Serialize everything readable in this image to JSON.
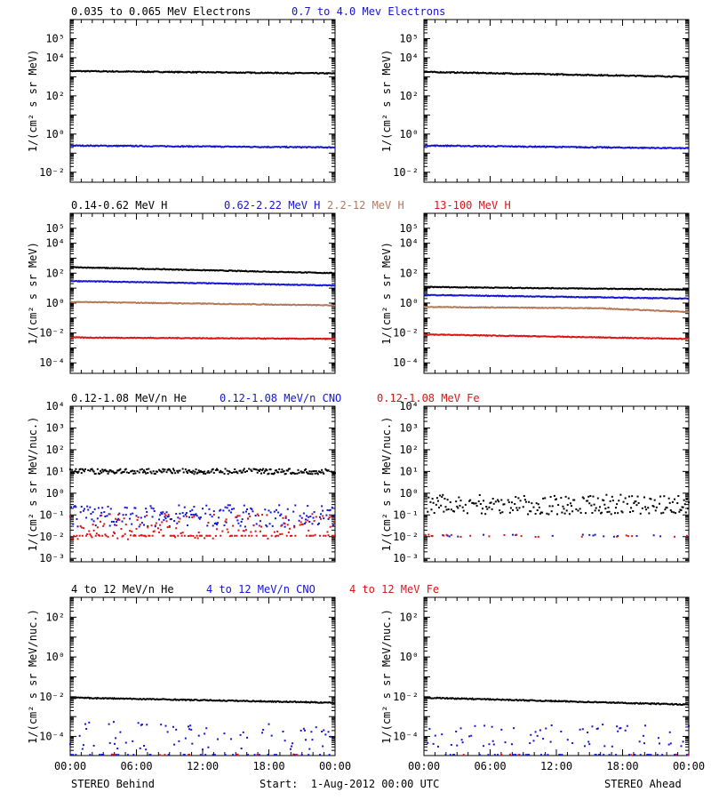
{
  "colors": {
    "black": "#000000",
    "blue": "#1414d2",
    "brown": "#b4785a",
    "red": "#dc1414"
  },
  "footer": {
    "left": "STEREO Behind",
    "center": "Start:  1-Aug-2012 00:00 UTC",
    "right": "STEREO Ahead"
  },
  "chart_data": [
    {
      "type": "line",
      "panel": "electrons",
      "spacecraft": "STEREO Behind",
      "log_scale": true,
      "ylim": [
        0.003,
        1000000
      ],
      "ylabel": "1/(cm² s sr MeV)",
      "yticks": [
        {
          "v": 100000,
          "label": "10^5"
        },
        {
          "v": 10000,
          "label": "10^4"
        },
        {
          "v": 100,
          "label": "10^2"
        },
        {
          "v": 1,
          "label": "10^0"
        },
        {
          "v": 0.01,
          "label": "10^-2"
        }
      ],
      "xlim": [
        "2012-08-01 00:00",
        "2012-08-02 00:00"
      ],
      "xtick_labels": [],
      "titles": [
        {
          "text": "0.035 to 0.065 MeV Electrons",
          "color": "black"
        },
        {
          "text": "0.7 to 4.0 Mev Electrons",
          "color": "blue"
        }
      ],
      "series": [
        {
          "name": "0.035 to 0.065 MeV Electrons",
          "color": "black",
          "style": "line",
          "times": [
            "00:00",
            "24:00"
          ],
          "values": [
            2000,
            1500
          ]
        },
        {
          "name": "0.7 to 4.0 Mev Electrons",
          "color": "blue",
          "style": "line",
          "times": [
            "00:00",
            "24:00"
          ],
          "values": [
            0.25,
            0.2
          ]
        }
      ]
    },
    {
      "type": "line",
      "panel": "electrons",
      "spacecraft": "STEREO Ahead",
      "log_scale": true,
      "ylim": [
        0.003,
        1000000
      ],
      "ylabel": "1/(cm² s sr MeV)",
      "yticks": [
        {
          "v": 100000,
          "label": "10^5"
        },
        {
          "v": 10000,
          "label": "10^4"
        },
        {
          "v": 100,
          "label": "10^2"
        },
        {
          "v": 1,
          "label": "10^0"
        },
        {
          "v": 0.01,
          "label": "10^-2"
        }
      ],
      "xlim": [
        "2012-08-01 00:00",
        "2012-08-02 00:00"
      ],
      "xtick_labels": [],
      "titles": [],
      "series": [
        {
          "name": "0.035 to 0.065 MeV Electrons",
          "color": "black",
          "style": "line",
          "times": [
            "00:00",
            "24:00"
          ],
          "values": [
            1800,
            1000
          ]
        },
        {
          "name": "0.7 to 4.0 Mev Electrons",
          "color": "blue",
          "style": "line",
          "times": [
            "00:00",
            "24:00"
          ],
          "values": [
            0.25,
            0.18
          ]
        }
      ]
    },
    {
      "type": "line",
      "panel": "protons",
      "spacecraft": "STEREO Behind",
      "log_scale": true,
      "ylim": [
        2e-05,
        1000000
      ],
      "ylabel": "1/(cm² s sr MeV)",
      "yticks": [
        {
          "v": 100000,
          "label": "10^5"
        },
        {
          "v": 10000,
          "label": "10^4"
        },
        {
          "v": 100,
          "label": "10^2"
        },
        {
          "v": 1,
          "label": "10^0"
        },
        {
          "v": 0.01,
          "label": "10^-2"
        },
        {
          "v": 0.0001,
          "label": "10^-4"
        }
      ],
      "xlim": [
        "2012-08-01 00:00",
        "2012-08-02 00:00"
      ],
      "xtick_labels": [],
      "titles": [
        {
          "text": "0.14-0.62 MeV H",
          "color": "black"
        },
        {
          "text": "0.62-2.22 MeV H",
          "color": "blue"
        },
        {
          "text": "2.2-12 MeV H",
          "color": "brown"
        },
        {
          "text": "13-100 MeV H",
          "color": "red"
        }
      ],
      "series": [
        {
          "name": "0.14-0.62 MeV H",
          "color": "black",
          "style": "line",
          "times": [
            "00:00",
            "24:00"
          ],
          "values": [
            250,
            100
          ]
        },
        {
          "name": "0.62-2.22 MeV H",
          "color": "blue",
          "style": "line",
          "times": [
            "00:00",
            "24:00"
          ],
          "values": [
            30,
            15
          ]
        },
        {
          "name": "2.2-12 MeV H",
          "color": "brown",
          "style": "line",
          "times": [
            "00:00",
            "24:00"
          ],
          "values": [
            1.2,
            0.7
          ]
        },
        {
          "name": "13-100 MeV H",
          "color": "red",
          "style": "line",
          "times": [
            "00:00",
            "24:00"
          ],
          "values": [
            0.005,
            0.004
          ]
        }
      ]
    },
    {
      "type": "line",
      "panel": "protons",
      "spacecraft": "STEREO Ahead",
      "log_scale": true,
      "ylim": [
        2e-05,
        1000000
      ],
      "ylabel": "1/(cm² s sr MeV)",
      "yticks": [
        {
          "v": 100000,
          "label": "10^5"
        },
        {
          "v": 10000,
          "label": "10^4"
        },
        {
          "v": 100,
          "label": "10^2"
        },
        {
          "v": 1,
          "label": "10^0"
        },
        {
          "v": 0.01,
          "label": "10^-2"
        },
        {
          "v": 0.0001,
          "label": "10^-4"
        }
      ],
      "xlim": [
        "2012-08-01 00:00",
        "2012-08-02 00:00"
      ],
      "xtick_labels": [],
      "titles": [],
      "series": [
        {
          "name": "0.14-0.62 MeV H",
          "color": "black",
          "style": "line",
          "times": [
            "00:00",
            "24:00"
          ],
          "values": [
            12,
            8
          ]
        },
        {
          "name": "0.62-2.22 MeV H",
          "color": "blue",
          "style": "line",
          "times": [
            "00:00",
            "24:00"
          ],
          "values": [
            3.5,
            2
          ]
        },
        {
          "name": "2.2-12 MeV H",
          "color": "brown",
          "style": "line",
          "times": [
            "00:00",
            "16:00",
            "24:00"
          ],
          "values": [
            0.55,
            0.45,
            0.25
          ]
        },
        {
          "name": "13-100 MeV H",
          "color": "red",
          "style": "line",
          "times": [
            "00:00",
            "24:00"
          ],
          "values": [
            0.008,
            0.004
          ]
        }
      ]
    },
    {
      "type": "scatter",
      "panel": "heavy_low",
      "spacecraft": "STEREO Behind",
      "log_scale": true,
      "ylim": [
        0.0007,
        10000
      ],
      "ylabel": "1/(cm² s sr MeV/nuc.)",
      "yticks": [
        {
          "v": 10000,
          "label": "10^4"
        },
        {
          "v": 1000,
          "label": "10^3"
        },
        {
          "v": 100,
          "label": "10^2"
        },
        {
          "v": 10,
          "label": "10^1"
        },
        {
          "v": 1,
          "label": "10^0"
        },
        {
          "v": 0.1,
          "label": "10^-1"
        },
        {
          "v": 0.01,
          "label": "10^-2"
        },
        {
          "v": 0.001,
          "label": "10^-3"
        }
      ],
      "xlim": [
        "2012-08-01 00:00",
        "2012-08-02 00:00"
      ],
      "xtick_labels": [],
      "titles": [
        {
          "text": "0.12-1.08 MeV/n He",
          "color": "black"
        },
        {
          "text": "0.12-1.08 MeV/n CNO",
          "color": "blue"
        },
        {
          "text": "0.12-1.08 MeV Fe",
          "color": "red"
        }
      ],
      "series": [
        {
          "name": "0.12-1.08 MeV/n He",
          "color": "black",
          "style": "dots",
          "times": [
            "00:00",
            "24:00"
          ],
          "values": [
            10,
            10
          ],
          "scatter": 0.12,
          "fill": 0.85
        },
        {
          "name": "0.12-1.08 MeV/n CNO",
          "color": "blue",
          "style": "dots",
          "times": [
            "00:00",
            "24:00"
          ],
          "values": [
            0.09,
            0.09
          ],
          "scatter": 0.5,
          "fill": 0.75
        },
        {
          "name": "0.12-1.08 MeV Fe",
          "color": "red",
          "style": "dots",
          "times": [
            "00:00",
            "24:00"
          ],
          "values": [
            0.03,
            0.03
          ],
          "scatter": 0.6,
          "fill": 0.75,
          "floor": 0.011
        }
      ]
    },
    {
      "type": "scatter",
      "panel": "heavy_low",
      "spacecraft": "STEREO Ahead",
      "log_scale": true,
      "ylim": [
        0.0007,
        10000
      ],
      "ylabel": "1/(cm² s sr MeV/nuc.)",
      "yticks": [
        {
          "v": 10000,
          "label": "10^4"
        },
        {
          "v": 1000,
          "label": "10^3"
        },
        {
          "v": 100,
          "label": "10^2"
        },
        {
          "v": 10,
          "label": "10^1"
        },
        {
          "v": 1,
          "label": "10^0"
        },
        {
          "v": 0.1,
          "label": "10^-1"
        },
        {
          "v": 0.01,
          "label": "10^-2"
        },
        {
          "v": 0.001,
          "label": "10^-3"
        }
      ],
      "xlim": [
        "2012-08-01 00:00",
        "2012-08-02 00:00"
      ],
      "xtick_labels": [],
      "titles": [],
      "series": [
        {
          "name": "0.12-1.08 MeV/n He",
          "color": "black",
          "style": "dots",
          "times": [
            "00:00",
            "24:00"
          ],
          "values": [
            0.3,
            0.3
          ],
          "scatter": 0.45,
          "fill": 0.8
        },
        {
          "name": "0.12-1.08 MeV/n CNO",
          "color": "blue",
          "style": "dots",
          "times": [
            "00:00",
            "24:00"
          ],
          "values": [
            0.011,
            0.011
          ],
          "scatter": 0.05,
          "fill": 0.08
        },
        {
          "name": "0.12-1.08 MeV Fe",
          "color": "red",
          "style": "dots",
          "times": [
            "00:00",
            "24:00"
          ],
          "values": [
            0.011,
            0.011
          ],
          "scatter": 0.05,
          "fill": 0.08
        }
      ]
    },
    {
      "type": "scatter",
      "panel": "heavy_high",
      "spacecraft": "STEREO Behind",
      "log_scale": true,
      "ylim": [
        1.1e-05,
        1000
      ],
      "ylabel": "1/(cm² s sr MeV/nuc.)",
      "yticks": [
        {
          "v": 100,
          "label": "10^2"
        },
        {
          "v": 1,
          "label": "10^0"
        },
        {
          "v": 0.01,
          "label": "10^-2"
        },
        {
          "v": 0.0001,
          "label": "10^-4"
        }
      ],
      "xlim": [
        "2012-08-01 00:00",
        "2012-08-02 00:00"
      ],
      "xtick_labels": [
        "00:00",
        "06:00",
        "12:00",
        "18:00",
        "00:00"
      ],
      "titles": [
        {
          "text": "4 to 12 MeV/n He",
          "color": "black"
        },
        {
          "text": "4 to 12 MeV/n CNO",
          "color": "blue"
        },
        {
          "text": "4 to 12 MeV Fe",
          "color": "red"
        }
      ],
      "series": [
        {
          "name": "4 to 12 MeV/n He",
          "color": "black",
          "style": "line",
          "times": [
            "00:00",
            "24:00"
          ],
          "values": [
            0.009,
            0.005
          ]
        },
        {
          "name": "4 to 12 MeV/n CNO",
          "color": "blue",
          "style": "dots",
          "times": [
            "00:00",
            "24:00"
          ],
          "values": [
            0.00011,
            0.00011
          ],
          "scatter": 0.7,
          "fill": 0.4,
          "floor": 1.2e-05
        },
        {
          "name": "4 to 12 MeV Fe",
          "color": "red",
          "style": "dots",
          "times": [
            "00:00",
            "24:00"
          ],
          "values": [
            1.2e-05,
            1.2e-05
          ],
          "scatter": 0.02,
          "fill": 0.03
        }
      ]
    },
    {
      "type": "scatter",
      "panel": "heavy_high",
      "spacecraft": "STEREO Ahead",
      "log_scale": true,
      "ylim": [
        1.1e-05,
        1000
      ],
      "ylabel": "1/(cm² s sr MeV/nuc.)",
      "yticks": [
        {
          "v": 100,
          "label": "10^2"
        },
        {
          "v": 1,
          "label": "10^0"
        },
        {
          "v": 0.01,
          "label": "10^-2"
        },
        {
          "v": 0.0001,
          "label": "10^-4"
        }
      ],
      "xlim": [
        "2012-08-01 00:00",
        "2012-08-02 00:00"
      ],
      "xtick_labels": [
        "00:00",
        "06:00",
        "12:00",
        "18:00",
        "00:00"
      ],
      "titles": [],
      "series": [
        {
          "name": "4 to 12 MeV/n He",
          "color": "black",
          "style": "line",
          "times": [
            "00:00",
            "24:00"
          ],
          "values": [
            0.009,
            0.004
          ]
        },
        {
          "name": "4 to 12 MeV/n CNO",
          "color": "blue",
          "style": "dots",
          "times": [
            "00:00",
            "24:00"
          ],
          "values": [
            0.00011,
            0.00011
          ],
          "scatter": 0.6,
          "fill": 0.35,
          "floor": 1.2e-05
        },
        {
          "name": "4 to 12 MeV Fe",
          "color": "red",
          "style": "dots",
          "times": [
            "00:00",
            "24:00"
          ],
          "values": [
            1.2e-05,
            1.2e-05
          ],
          "scatter": 0.02,
          "fill": 0.03
        }
      ]
    }
  ]
}
